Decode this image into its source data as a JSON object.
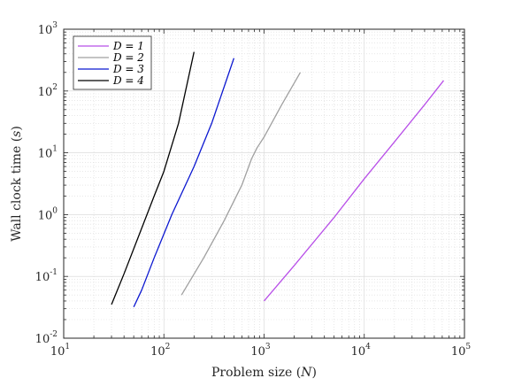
{
  "chart_data": {
    "type": "line",
    "xscale": "log",
    "yscale": "log",
    "xlabel_text": "Problem size",
    "xlabel_var": "N",
    "ylabel_text": "Wall clock time",
    "ylabel_var": "s",
    "xlim": [
      10,
      100000
    ],
    "ylim": [
      0.01,
      1000
    ],
    "x_ticks": [
      {
        "base": "10",
        "exp": "1"
      },
      {
        "base": "10",
        "exp": "2"
      },
      {
        "base": "10",
        "exp": "3"
      },
      {
        "base": "10",
        "exp": "4"
      },
      {
        "base": "10",
        "exp": "5"
      }
    ],
    "y_ticks": [
      {
        "base": "10",
        "exp": "-2"
      },
      {
        "base": "10",
        "exp": "-1"
      },
      {
        "base": "10",
        "exp": "0"
      },
      {
        "base": "10",
        "exp": "1"
      },
      {
        "base": "10",
        "exp": "2"
      },
      {
        "base": "10",
        "exp": "3"
      }
    ],
    "grid": true,
    "minor_grid": true,
    "legend_position": "top-left",
    "series": [
      {
        "name": "D = 1",
        "color": "#b84fe8",
        "points": [
          [
            1000,
            0.04
          ],
          [
            2000,
            0.15
          ],
          [
            5000,
            0.9
          ],
          [
            10000,
            3.8
          ],
          [
            20000,
            15
          ],
          [
            40000,
            60
          ],
          [
            62000,
            148
          ]
        ]
      },
      {
        "name": "D = 2",
        "color": "#a0a0a0",
        "points": [
          [
            150,
            0.05
          ],
          [
            250,
            0.2
          ],
          [
            400,
            0.8
          ],
          [
            600,
            3
          ],
          [
            750,
            8
          ],
          [
            850,
            12
          ],
          [
            1000,
            18
          ],
          [
            1500,
            60
          ],
          [
            2300,
            200
          ]
        ]
      },
      {
        "name": "D = 3",
        "color": "#0b17d0",
        "points": [
          [
            50,
            0.032
          ],
          [
            60,
            0.06
          ],
          [
            80,
            0.2
          ],
          [
            120,
            1
          ],
          [
            200,
            6
          ],
          [
            300,
            30
          ],
          [
            500,
            340
          ]
        ]
      },
      {
        "name": "D = 4",
        "color": "#000000",
        "points": [
          [
            30,
            0.035
          ],
          [
            40,
            0.11
          ],
          [
            60,
            0.6
          ],
          [
            80,
            2
          ],
          [
            100,
            5
          ],
          [
            140,
            30
          ],
          [
            200,
            430
          ]
        ]
      }
    ]
  }
}
